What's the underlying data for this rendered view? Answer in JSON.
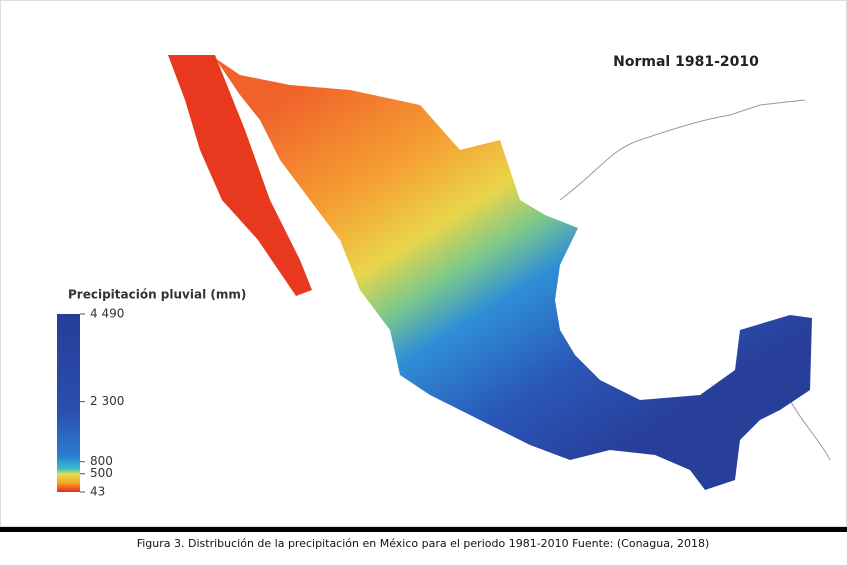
{
  "map_title": "Normal 1981-2010",
  "legend": {
    "title": "Precipitación pluvial (mm)",
    "range": [
      43,
      4490
    ],
    "ticks": [
      {
        "value": 4490,
        "label": "4 490"
      },
      {
        "value": 2300,
        "label": "2 300"
      },
      800,
      500,
      43
    ]
  },
  "caption": "Figura 3. Distribución de la precipitación en México para el periodo 1981-2010 Fuente: (Conagua, 2018)"
}
